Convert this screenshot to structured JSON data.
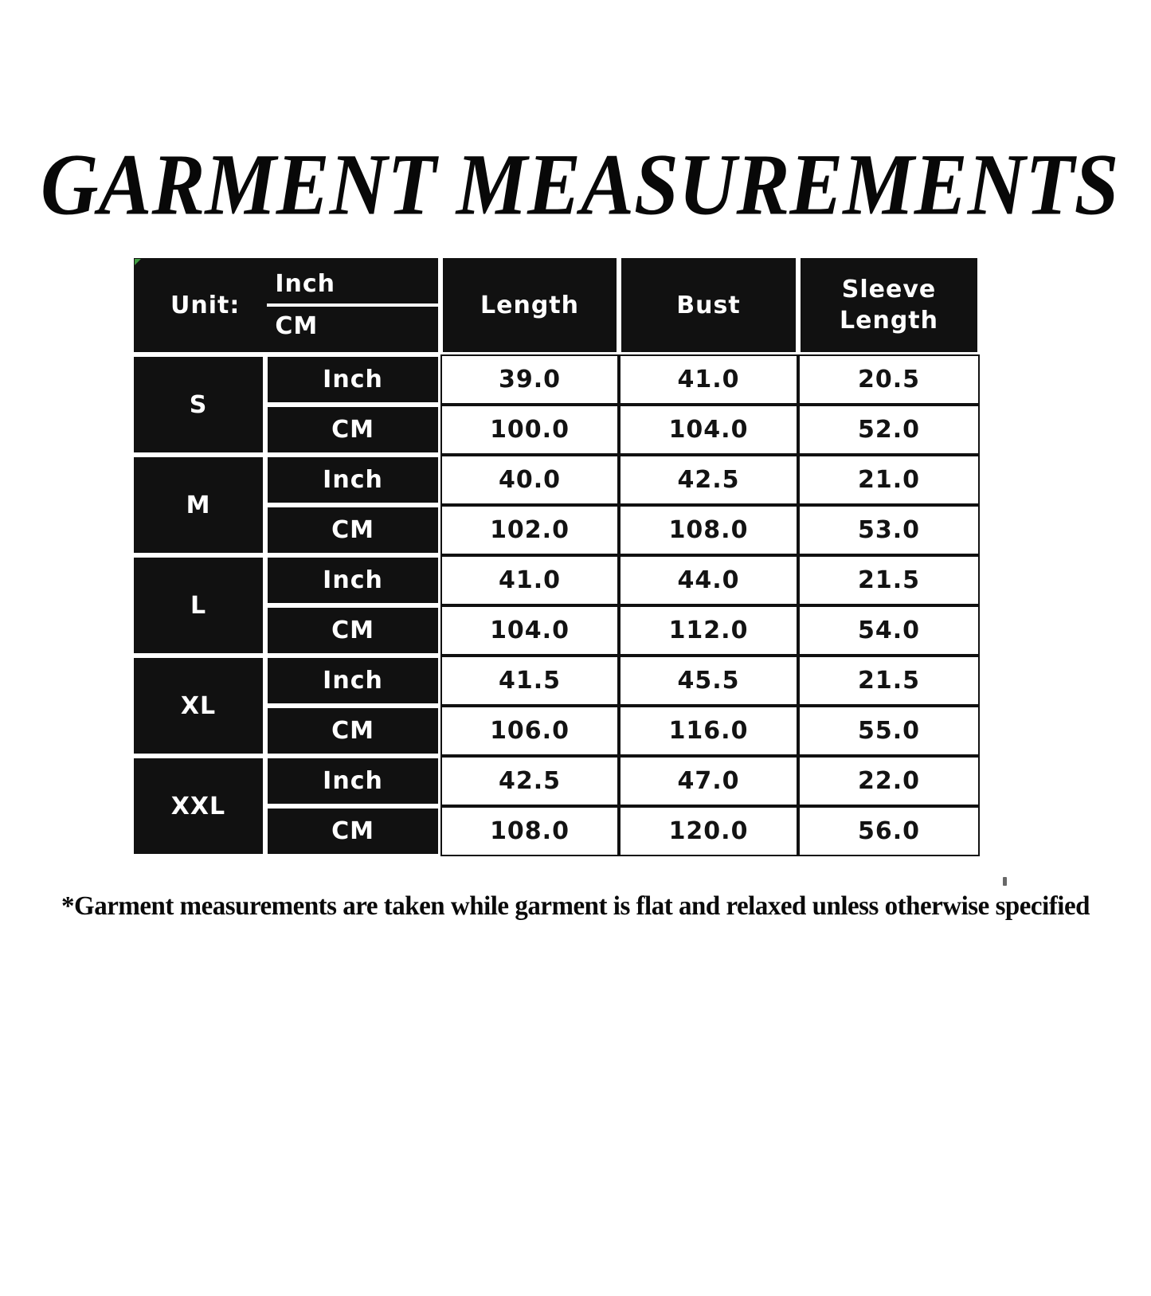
{
  "page": {
    "title": "GARMENT MEASUREMENTS",
    "footnote": "*Garment measurements are taken while garment is flat and relaxed unless otherwise specified"
  },
  "chart_data": {
    "type": "table",
    "title": "GARMENT MEASUREMENTS",
    "unit_header": {
      "label": "Unit:",
      "numerator": "Inch",
      "denominator": "CM"
    },
    "columns": [
      "Length",
      "Bust",
      "Sleeve Length"
    ],
    "sizes": [
      {
        "size": "S",
        "inch": [
          "39.0",
          "41.0",
          "20.5"
        ],
        "cm": [
          "100.0",
          "104.0",
          "52.0"
        ]
      },
      {
        "size": "M",
        "inch": [
          "40.0",
          "42.5",
          "21.0"
        ],
        "cm": [
          "102.0",
          "108.0",
          "53.0"
        ]
      },
      {
        "size": "L",
        "inch": [
          "41.0",
          "44.0",
          "21.5"
        ],
        "cm": [
          "104.0",
          "112.0",
          "54.0"
        ]
      },
      {
        "size": "XL",
        "inch": [
          "41.5",
          "45.5",
          "21.5"
        ],
        "cm": [
          "106.0",
          "116.0",
          "55.0"
        ]
      },
      {
        "size": "XXL",
        "inch": [
          "42.5",
          "47.0",
          "22.0"
        ],
        "cm": [
          "108.0",
          "120.0",
          "56.0"
        ]
      }
    ],
    "footnote": "*Garment measurements are taken while garment is flat and relaxed unless otherwise specified"
  },
  "colors": {
    "cell_dark": "#111111",
    "cell_light": "#ffffff",
    "text_on_dark": "#ffffff",
    "text_on_light": "#131313",
    "artifact_green": "#3f9b41"
  }
}
